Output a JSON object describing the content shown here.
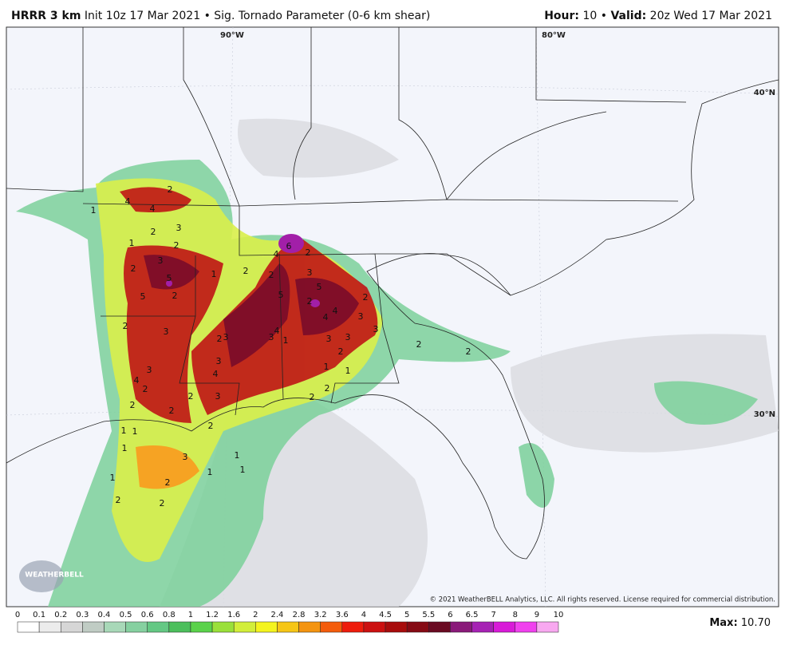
{
  "header": {
    "model": "HRRR 3 km",
    "init": "Init 10z 17 Mar 2021",
    "separator": "•",
    "parameter": "Sig. Tornado Parameter (0-6 km shear)",
    "hour_label": "Hour:",
    "hour": 10,
    "valid_label": "Valid:",
    "valid": "20z Wed 17 Mar 2021"
  },
  "map": {
    "graticule_labels": [
      "90°W",
      "80°W",
      "40°N",
      "30°N"
    ],
    "contour_labels": [
      2,
      1,
      4,
      4,
      2,
      3,
      1,
      2,
      3,
      2,
      5,
      5,
      2,
      2,
      3,
      3,
      4,
      2,
      2,
      2,
      2,
      3,
      4,
      2,
      3,
      2,
      1,
      4,
      6,
      2,
      2,
      5,
      5,
      3,
      4,
      4,
      2,
      2,
      3,
      3,
      3,
      4,
      3,
      2,
      3,
      1,
      1,
      2,
      2,
      3,
      2,
      1,
      1,
      1,
      3,
      1,
      1,
      1,
      2,
      1,
      2,
      2,
      2,
      2,
      1
    ],
    "copyright": "© 2021 WeatherBELL Analytics, LLC. All rights reserved. License required for commercial distribution.",
    "logo": "WEATHERBELL"
  },
  "colorbar": {
    "ticks": [
      0,
      0.1,
      0.2,
      0.3,
      0.4,
      0.5,
      0.6,
      0.8,
      1,
      1.2,
      1.6,
      2,
      2.4,
      2.8,
      3.2,
      3.6,
      4,
      4.5,
      5,
      5.5,
      6,
      6.5,
      7,
      8,
      9,
      10
    ],
    "colors": [
      "#ffffff",
      "#ececec",
      "#d6d6d6",
      "#c0ccc4",
      "#a8d8b8",
      "#86d0a0",
      "#64c884",
      "#4cbf5c",
      "#5ad24a",
      "#9ae03a",
      "#d2ee3a",
      "#f4f41e",
      "#f6c616",
      "#f49410",
      "#f45c0c",
      "#ee1c0c",
      "#cc1010",
      "#a80c0c",
      "#860a14",
      "#6a0a22",
      "#8a1a7a",
      "#a622b4",
      "#d81ad8",
      "#f040ee",
      "#f8a8f0"
    ]
  },
  "max": {
    "label": "Max:",
    "value": "10.70"
  }
}
